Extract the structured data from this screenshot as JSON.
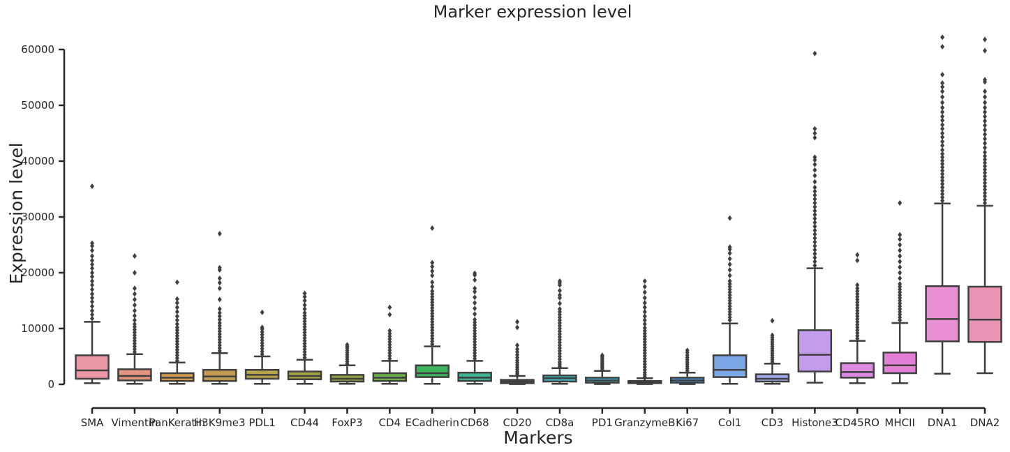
{
  "chart_data": {
    "type": "box",
    "title": "Marker expression level",
    "xlabel": "Markers",
    "ylabel": "Expression level",
    "ylim": [
      -4500,
      63000
    ],
    "yticks": [
      0,
      10000,
      20000,
      30000,
      40000,
      50000,
      60000
    ],
    "grid": false,
    "legend": "none",
    "box_color": "#3f3f3f",
    "categories": [
      "SMA",
      "Vimentin",
      "PanKeratin",
      "H3K9me3",
      "PDL1",
      "CD44",
      "FoxP3",
      "CD4",
      "ECadherin",
      "CD68",
      "CD20",
      "CD8a",
      "PD1",
      "GranzymeB",
      "Ki67",
      "Col1",
      "CD3",
      "Histone3",
      "CD45RO",
      "MHCII",
      "DNA1",
      "DNA2"
    ],
    "series": [
      {
        "category": "SMA",
        "color": "#ea96a3",
        "whisker_low": 200,
        "q1": 1000,
        "median": 2500,
        "q3": 5200,
        "whisker_high": 11200,
        "outliers": [
          11800,
          12500,
          13200,
          14000,
          14800,
          15500,
          16200,
          17000,
          17800,
          18500,
          19300,
          20000,
          20800,
          21500,
          22200,
          23000,
          24000,
          24800,
          25300,
          35500
        ]
      },
      {
        "category": "Vimentin",
        "color": "#e0967e",
        "whisker_low": 100,
        "q1": 700,
        "median": 1500,
        "q3": 2700,
        "whisker_high": 5400,
        "outliers": [
          5800,
          6300,
          6800,
          7300,
          7800,
          8300,
          8800,
          9300,
          9800,
          10300,
          10800,
          11500,
          12300,
          13200,
          14200,
          15200,
          16200,
          17200,
          20000,
          23000
        ]
      },
      {
        "category": "PanKeratin",
        "color": "#d69c4e",
        "whisker_low": 100,
        "q1": 600,
        "median": 1200,
        "q3": 2000,
        "whisker_high": 3900,
        "outliers": [
          4200,
          4700,
          5200,
          5700,
          6200,
          6700,
          7200,
          7700,
          8200,
          8700,
          9200,
          9700,
          10200,
          10800,
          11500,
          12200,
          13000,
          13800,
          14600,
          15300,
          18300
        ]
      },
      {
        "category": "H3K9me3",
        "color": "#c39b52",
        "whisker_low": 100,
        "q1": 600,
        "median": 1400,
        "q3": 2600,
        "whisker_high": 5600,
        "outliers": [
          6000,
          6500,
          7000,
          7500,
          8000,
          8500,
          9000,
          9500,
          10000,
          10500,
          11000,
          11600,
          12200,
          12800,
          13500,
          15200,
          17200,
          18200,
          19000,
          20500,
          20900,
          27000
        ]
      },
      {
        "category": "PDL1",
        "color": "#b7a44b",
        "whisker_low": 100,
        "q1": 1000,
        "median": 1700,
        "q3": 2600,
        "whisker_high": 5000,
        "outliers": [
          5400,
          5900,
          6400,
          6900,
          7400,
          7900,
          8400,
          8900,
          9400,
          9900,
          10200,
          12900
        ]
      },
      {
        "category": "CD44",
        "color": "#a5a445",
        "whisker_low": 100,
        "q1": 900,
        "median": 1500,
        "q3": 2300,
        "whisker_high": 4400,
        "outliers": [
          4800,
          5300,
          5800,
          6300,
          6800,
          7300,
          7800,
          8300,
          8800,
          9300,
          9800,
          10300,
          10800,
          11300,
          11800,
          12300,
          12800,
          13500,
          14200,
          15000,
          15700,
          16300
        ]
      },
      {
        "category": "FoxP3",
        "color": "#8fa43f",
        "whisker_low": 100,
        "q1": 500,
        "median": 1000,
        "q3": 1700,
        "whisker_high": 3400,
        "outliers": [
          3700,
          4100,
          4500,
          4900,
          5300,
          5700,
          6100,
          6500,
          6800,
          7100
        ]
      },
      {
        "category": "CD4",
        "color": "#6cb049",
        "whisker_low": 100,
        "q1": 600,
        "median": 1200,
        "q3": 2000,
        "whisker_high": 4200,
        "outliers": [
          4600,
          5100,
          5600,
          6100,
          6600,
          7100,
          7600,
          8100,
          8600,
          9100,
          9600,
          12500,
          13800
        ]
      },
      {
        "category": "ECadherin",
        "color": "#3bb45c",
        "whisker_low": 100,
        "q1": 1300,
        "median": 2000,
        "q3": 3400,
        "whisker_high": 6800,
        "outliers": [
          7200,
          7700,
          8200,
          8700,
          9200,
          9700,
          10200,
          10700,
          11200,
          11700,
          12200,
          12700,
          13200,
          13700,
          14200,
          14700,
          15200,
          15700,
          16200,
          16700,
          17500,
          18300,
          19500,
          20300,
          21100,
          21800,
          28000
        ]
      },
      {
        "category": "CD68",
        "color": "#3db292",
        "whisker_low": 100,
        "q1": 600,
        "median": 1200,
        "q3": 2100,
        "whisker_high": 4200,
        "outliers": [
          4600,
          5100,
          5600,
          6100,
          6600,
          7100,
          7600,
          8100,
          8600,
          9100,
          9600,
          10100,
          10600,
          11100,
          11600,
          12600,
          13600,
          14600,
          15600,
          16600,
          17200,
          18700,
          19600,
          19900
        ]
      },
      {
        "category": "CD20",
        "color": "#3cb3a9",
        "whisker_low": 50,
        "q1": 200,
        "median": 500,
        "q3": 800,
        "whisker_high": 1500,
        "outliers": [
          1700,
          2000,
          2300,
          2700,
          3100,
          3500,
          3900,
          4300,
          4800,
          5300,
          5800,
          6300,
          7000,
          10200,
          11200
        ]
      },
      {
        "category": "CD8a",
        "color": "#41b3bd",
        "whisker_low": 100,
        "q1": 500,
        "median": 1100,
        "q3": 1600,
        "whisker_high": 2900,
        "outliers": [
          3200,
          3600,
          4000,
          4500,
          5000,
          5500,
          6000,
          6500,
          7000,
          7500,
          8000,
          8500,
          9000,
          9500,
          10000,
          10500,
          11000,
          11500,
          12000,
          12500,
          13000,
          13500,
          14500,
          15500,
          16000,
          16800,
          17800,
          18200,
          18500
        ]
      },
      {
        "category": "PD1",
        "color": "#3fb2ce",
        "whisker_low": 50,
        "q1": 300,
        "median": 700,
        "q3": 1200,
        "whisker_high": 2400,
        "outliers": [
          2600,
          2900,
          3200,
          3500,
          3800,
          4100,
          4400,
          4700,
          5000,
          5200
        ]
      },
      {
        "category": "GranzymeB",
        "color": "#43a5d9",
        "whisker_low": 50,
        "q1": 200,
        "median": 400,
        "q3": 600,
        "whisker_high": 1100,
        "outliers": [
          1300,
          1700,
          2100,
          2600,
          3100,
          3600,
          4100,
          4600,
          5100,
          5600,
          6100,
          6600,
          7100,
          7600,
          8100,
          8600,
          9100,
          9600,
          10100,
          10800,
          11500,
          12200,
          13000,
          13800,
          14600,
          15500,
          16500,
          17500,
          18500
        ]
      },
      {
        "category": "Ki67",
        "color": "#4b99e0",
        "whisker_low": 50,
        "q1": 300,
        "median": 700,
        "q3": 1200,
        "whisker_high": 2100,
        "outliers": [
          2400,
          2800,
          3200,
          3600,
          4000,
          4400,
          4800,
          5200,
          5700,
          6100
        ]
      },
      {
        "category": "Col1",
        "color": "#7ca7e6",
        "whisker_low": 100,
        "q1": 1300,
        "median": 2600,
        "q3": 5200,
        "whisker_high": 10900,
        "outliers": [
          11500,
          12000,
          12500,
          13000,
          13500,
          14000,
          14500,
          15000,
          15500,
          16000,
          16500,
          17000,
          17500,
          18000,
          18500,
          19500,
          20500,
          21500,
          22500,
          23500,
          24200,
          24600,
          29800
        ]
      },
      {
        "category": "CD3",
        "color": "#a0a6ea",
        "whisker_low": 100,
        "q1": 500,
        "median": 1000,
        "q3": 1800,
        "whisker_high": 3700,
        "outliers": [
          4000,
          4400,
          4800,
          5200,
          5600,
          6000,
          6400,
          6800,
          7200,
          7600,
          8000,
          8400,
          8800,
          11400
        ]
      },
      {
        "category": "Histone3",
        "color": "#c39ceb",
        "whisker_low": 300,
        "q1": 2300,
        "median": 5300,
        "q3": 9700,
        "whisker_high": 20800,
        "outliers": [
          21300,
          22000,
          22700,
          23400,
          24100,
          24800,
          25500,
          26200,
          26900,
          27600,
          28300,
          29000,
          29700,
          30400,
          31100,
          31800,
          32500,
          33200,
          33900,
          34600,
          35300,
          36300,
          37400,
          38400,
          39400,
          40200,
          40700,
          44200,
          45000,
          45800,
          59300
        ]
      },
      {
        "category": "CD45RO",
        "color": "#dd8ae2",
        "whisker_low": 200,
        "q1": 1200,
        "median": 2200,
        "q3": 3800,
        "whisker_high": 7800,
        "outliers": [
          8200,
          8700,
          9200,
          9700,
          10200,
          10700,
          11200,
          11700,
          12200,
          12700,
          13200,
          13700,
          14200,
          14700,
          15200,
          15700,
          16200,
          16700,
          17200,
          17800,
          22200,
          23200
        ]
      },
      {
        "category": "MHCII",
        "color": "#e47fd8",
        "whisker_low": 200,
        "q1": 2000,
        "median": 3400,
        "q3": 5700,
        "whisker_high": 11000,
        "outliers": [
          11500,
          12000,
          12500,
          13000,
          13500,
          14000,
          14500,
          15000,
          15500,
          16000,
          16500,
          17000,
          17500,
          18000,
          19000,
          20000,
          21000,
          22000,
          23000,
          24000,
          25000,
          26000,
          26800,
          32500
        ]
      },
      {
        "category": "DNA1",
        "color": "#e88fd3",
        "whisker_low": 1900,
        "q1": 7700,
        "median": 11700,
        "q3": 17600,
        "whisker_high": 32400,
        "outliers": [
          32900,
          33500,
          34100,
          34700,
          35300,
          35900,
          36500,
          37100,
          37700,
          38300,
          38900,
          39500,
          40100,
          40700,
          41300,
          42000,
          42800,
          43500,
          44300,
          45000,
          45800,
          46500,
          47300,
          48000,
          48800,
          49600,
          50500,
          51500,
          52500,
          53300,
          54000,
          55500,
          60500,
          62200
        ]
      },
      {
        "category": "DNA2",
        "color": "#ea93b4",
        "whisker_low": 2000,
        "q1": 7600,
        "median": 11600,
        "q3": 17500,
        "whisker_high": 32000,
        "outliers": [
          32500,
          33100,
          33700,
          34300,
          34900,
          35500,
          36100,
          36700,
          37300,
          37900,
          38500,
          39100,
          39700,
          40300,
          40900,
          41600,
          42400,
          43200,
          44000,
          44800,
          45600,
          46400,
          47200,
          48000,
          48800,
          49600,
          50500,
          51500,
          52500,
          54200,
          54600,
          59800,
          61800
        ]
      }
    ]
  }
}
